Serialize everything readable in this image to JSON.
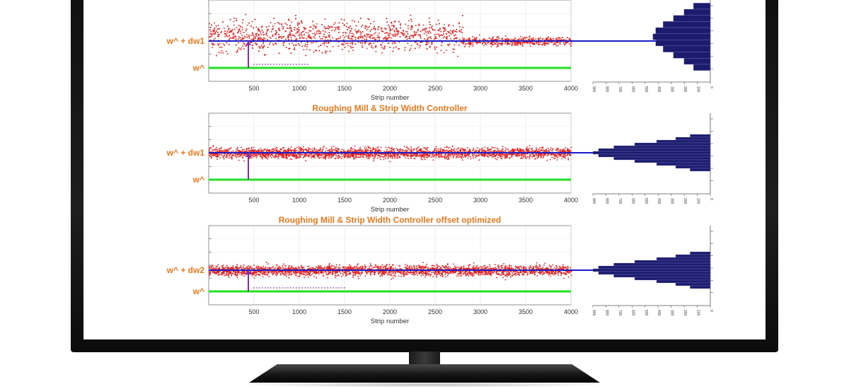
{
  "chart_data": [
    {
      "type": "scatter",
      "title": "",
      "xlabel": "Strip number",
      "xlim": [
        0,
        4000
      ],
      "xticks": [
        "500",
        "1000",
        "1500",
        "2000",
        "2500",
        "3000",
        "3500",
        "4000"
      ],
      "level_labels": [
        "w^ + dw1",
        "w^"
      ],
      "reference_lines": [
        {
          "name": "w^ + dw1",
          "color": "#1c1cc8"
        },
        {
          "name": "w^",
          "color": "#22e022"
        }
      ],
      "scatter_color": "#e02020",
      "histogram": {
        "orientation": "horizontal",
        "color": "#1c1c6e",
        "ticks": [
          "900",
          "800",
          "700",
          "600",
          "500",
          "400",
          "300",
          "200",
          "100",
          "0"
        ],
        "peak_count": 440
      }
    },
    {
      "type": "scatter",
      "title": "Roughing Mill & Strip Width Controller",
      "xlabel": "Strip number",
      "xlim": [
        0,
        4000
      ],
      "xticks": [
        "500",
        "1000",
        "1500",
        "2000",
        "2500",
        "3000",
        "3500",
        "4000"
      ],
      "level_labels": [
        "w^ + dw1",
        "w^"
      ],
      "reference_lines": [
        {
          "name": "w^ + dw1",
          "color": "#1c1cc8"
        },
        {
          "name": "w^",
          "color": "#22e022"
        }
      ],
      "scatter_color": "#e02020",
      "histogram": {
        "orientation": "horizontal",
        "color": "#1c1c6e",
        "ticks": [
          "900",
          "800",
          "700",
          "600",
          "500",
          "400",
          "300",
          "200",
          "100",
          "0"
        ],
        "peak_count": 900
      }
    },
    {
      "type": "scatter",
      "title": "Roughing Mill & Strip Width Controller offset optimized",
      "xlabel": "Strip number",
      "xlim": [
        0,
        4000
      ],
      "xticks": [
        "500",
        "1000",
        "1500",
        "2000",
        "2500",
        "3000",
        "3500",
        "4000"
      ],
      "level_labels": [
        "w^ + dw2",
        "w^"
      ],
      "reference_lines": [
        {
          "name": "w^ + dw2",
          "color": "#1c1cc8"
        },
        {
          "name": "w^",
          "color": "#22e022"
        }
      ],
      "scatter_color": "#e02020",
      "histogram": {
        "orientation": "horizontal",
        "color": "#1c1c6e",
        "ticks": [
          "900",
          "800",
          "700",
          "600",
          "500",
          "400",
          "300",
          "200",
          "100",
          "0"
        ],
        "peak_count": 900
      }
    }
  ]
}
